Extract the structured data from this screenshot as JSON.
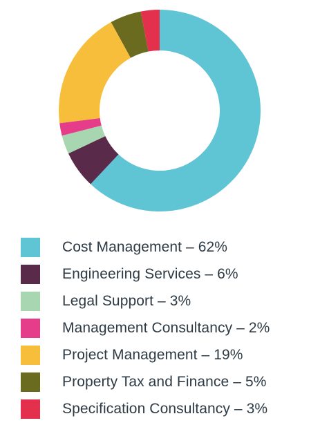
{
  "chart_data": {
    "type": "pie",
    "donut": true,
    "categories": [
      "Cost Management",
      "Engineering Services",
      "Legal Support",
      "Management Consultancy",
      "Project Management",
      "Property Tax and Finance",
      "Specification Consultancy"
    ],
    "values": [
      62,
      6,
      3,
      2,
      19,
      5,
      3
    ],
    "colors": [
      "#5fc4d3",
      "#5a2a4a",
      "#a8d6b0",
      "#e53d8a",
      "#f6be3a",
      "#6b6b1f",
      "#e2304d"
    ],
    "legend_position": "bottom",
    "legend": [
      {
        "label": "Cost Management – 62%"
      },
      {
        "label": "Engineering Services – 6%"
      },
      {
        "label": "Legal Support – 3%"
      },
      {
        "label": "Management Consultancy – 2%"
      },
      {
        "label": "Project Management – 19%"
      },
      {
        "label": "Property Tax and Finance – 5%"
      },
      {
        "label": "Specification Consultancy – 3%"
      }
    ]
  }
}
